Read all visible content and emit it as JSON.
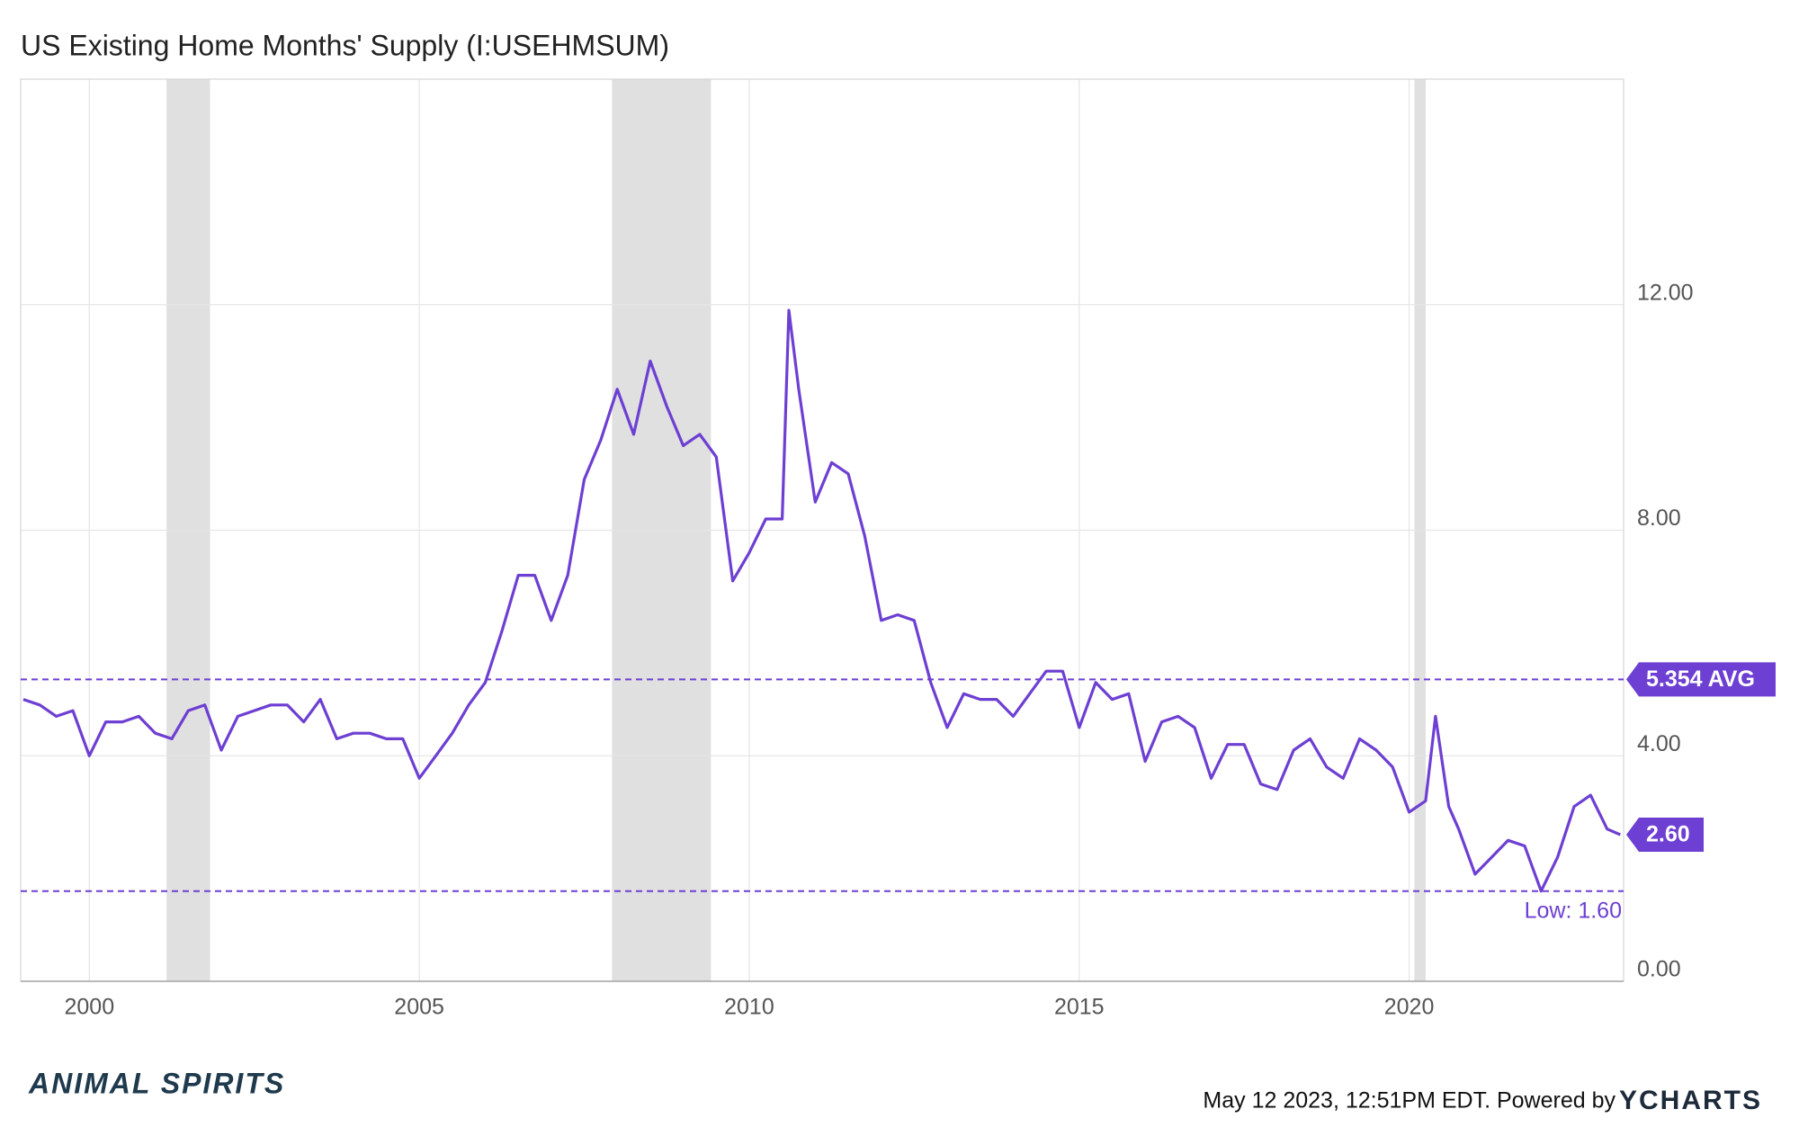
{
  "chart_data": {
    "type": "line",
    "title": "US Existing Home Months' Supply (I:USEHMSUM)",
    "series": [
      {
        "name": "US Existing Home Months' Supply",
        "color": "#6d3fd2",
        "x": [
          1999.0,
          1999.25,
          1999.5,
          1999.75,
          2000.0,
          2000.25,
          2000.5,
          2000.75,
          2001.0,
          2001.25,
          2001.5,
          2001.75,
          2002.0,
          2002.25,
          2002.5,
          2002.75,
          2003.0,
          2003.25,
          2003.5,
          2003.75,
          2004.0,
          2004.25,
          2004.5,
          2004.75,
          2005.0,
          2005.25,
          2005.5,
          2005.75,
          2006.0,
          2006.25,
          2006.5,
          2006.75,
          2007.0,
          2007.25,
          2007.5,
          2007.75,
          2008.0,
          2008.25,
          2008.5,
          2008.75,
          2009.0,
          2009.25,
          2009.5,
          2009.75,
          2010.0,
          2010.25,
          2010.5,
          2010.6,
          2010.75,
          2011.0,
          2011.25,
          2011.5,
          2011.75,
          2012.0,
          2012.25,
          2012.5,
          2012.75,
          2013.0,
          2013.25,
          2013.5,
          2013.75,
          2014.0,
          2014.25,
          2014.5,
          2014.75,
          2015.0,
          2015.25,
          2015.5,
          2015.75,
          2016.0,
          2016.25,
          2016.5,
          2016.75,
          2017.0,
          2017.25,
          2017.5,
          2017.75,
          2018.0,
          2018.25,
          2018.5,
          2018.75,
          2019.0,
          2019.25,
          2019.5,
          2019.75,
          2020.0,
          2020.25,
          2020.4,
          2020.6,
          2020.75,
          2021.0,
          2021.25,
          2021.5,
          2021.75,
          2022.0,
          2022.25,
          2022.5,
          2022.75,
          2023.0,
          2023.2
        ],
        "values": [
          5.0,
          4.9,
          4.7,
          4.8,
          4.0,
          4.6,
          4.6,
          4.7,
          4.4,
          4.3,
          4.8,
          4.9,
          4.1,
          4.7,
          4.8,
          4.9,
          4.9,
          4.6,
          5.0,
          4.3,
          4.4,
          4.4,
          4.3,
          4.3,
          3.6,
          4.0,
          4.4,
          4.9,
          5.3,
          6.2,
          7.2,
          7.2,
          6.4,
          7.2,
          8.9,
          9.6,
          10.5,
          9.7,
          11.0,
          10.2,
          9.5,
          9.7,
          9.3,
          7.1,
          7.6,
          8.2,
          8.2,
          11.9,
          10.5,
          8.5,
          9.2,
          9.0,
          7.9,
          6.4,
          6.5,
          6.4,
          5.3,
          4.5,
          5.1,
          5.0,
          5.0,
          4.7,
          5.1,
          5.5,
          5.5,
          4.5,
          5.3,
          5.0,
          5.1,
          3.9,
          4.6,
          4.7,
          4.5,
          3.6,
          4.2,
          4.2,
          3.5,
          3.4,
          4.1,
          4.3,
          3.8,
          3.6,
          4.3,
          4.1,
          3.8,
          3.0,
          3.2,
          4.7,
          3.1,
          2.7,
          1.9,
          2.2,
          2.5,
          2.4,
          1.6,
          2.2,
          3.1,
          3.3,
          2.7,
          2.6
        ]
      }
    ],
    "recessions": [
      [
        2001.17,
        2001.83
      ],
      [
        2007.92,
        2009.42
      ],
      [
        2020.08,
        2020.25
      ]
    ],
    "average": {
      "value": 5.354,
      "label": "5.354 AVG"
    },
    "low": {
      "value": 1.6,
      "label": "Low: 1.60"
    },
    "last": {
      "value": 2.6,
      "label": "2.60"
    },
    "xlim": [
      1998.96,
      2023.25
    ],
    "xticks": [
      2000,
      2005,
      2010,
      2015,
      2020
    ],
    "ylim": [
      0,
      16
    ],
    "yticks": [
      {
        "value": 0,
        "label": "0.00"
      },
      {
        "value": 4,
        "label": "4.00"
      },
      {
        "value": 8,
        "label": "8.00"
      },
      {
        "value": 12,
        "label": "12.00"
      }
    ],
    "grid": true
  },
  "footer": {
    "brand": "ANIMAL SPIRITS",
    "timestamp": "May 12 2023, 12:51PM EDT. Powered by",
    "logo": "YCHARTS"
  }
}
